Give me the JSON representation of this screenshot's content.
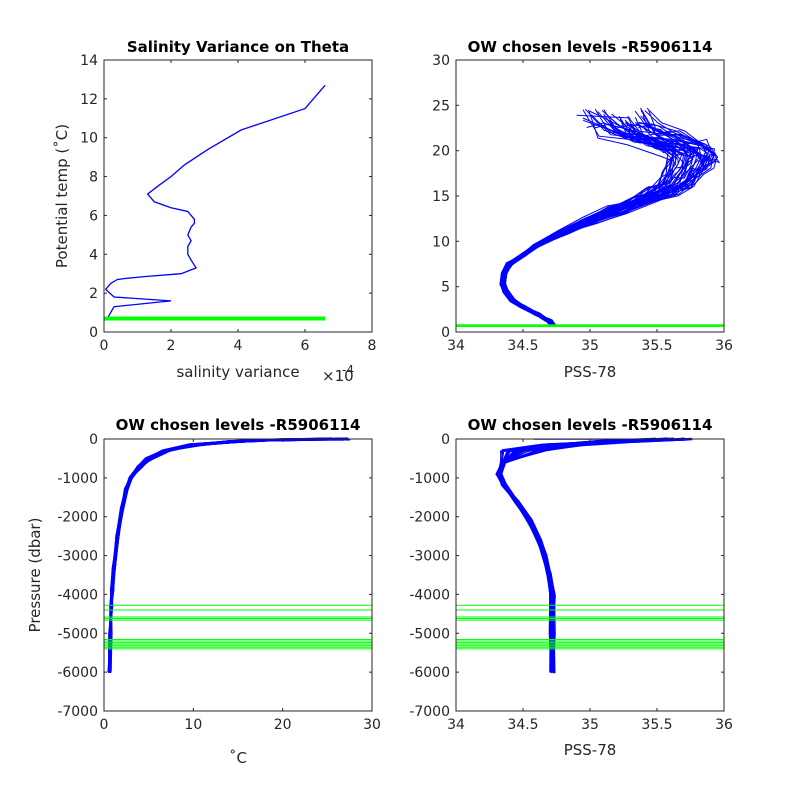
{
  "colors": {
    "profile": "#0000ff",
    "chosen_level": "#00ff00",
    "axis": "#262626",
    "background": "#ffffff"
  },
  "chart_data": [
    {
      "type": "line",
      "title": "Salinity Variance on Theta",
      "xlabel": "salinity variance",
      "x_exponent_label": "×10",
      "x_exponent_power": "-4",
      "ylabel": "Potential temp (˚C)",
      "xlim": [
        0,
        8
      ],
      "ylim": [
        0,
        14
      ],
      "xticks": [
        0,
        2,
        4,
        6,
        8
      ],
      "yticks": [
        0,
        2,
        4,
        6,
        8,
        10,
        12,
        14
      ],
      "series": [
        {
          "x": [
            0.1,
            0.3,
            2.0,
            0.3,
            0.05,
            0.2,
            0.35,
            0.4,
            0.6,
            1.2,
            2.3,
            2.75,
            2.6,
            2.5,
            2.5,
            2.6,
            2.5,
            2.6,
            2.7,
            2.7,
            2.6,
            2.5,
            2.0,
            1.5,
            1.3,
            1.6,
            2.0,
            2.4,
            3.1,
            4.1,
            6.0,
            6.6
          ],
          "y": [
            0.7,
            1.3,
            1.6,
            1.8,
            2.2,
            2.5,
            2.65,
            2.7,
            2.75,
            2.85,
            3.0,
            3.3,
            3.7,
            4.0,
            4.4,
            4.7,
            5.0,
            5.4,
            5.6,
            5.8,
            6.0,
            6.2,
            6.4,
            6.7,
            7.1,
            7.5,
            8.0,
            8.6,
            9.4,
            10.4,
            11.5,
            12.7
          ]
        }
      ],
      "chosen_levels": [
        0.62,
        0.65,
        0.68,
        0.71,
        0.74,
        0.77
      ],
      "chosen_levels_xlim": [
        0,
        6.6
      ]
    },
    {
      "type": "line",
      "title": "OW chosen levels -R5906114",
      "xlabel": "PSS-78",
      "ylabel": "",
      "xlim": [
        34,
        36
      ],
      "ylim": [
        0,
        30
      ],
      "xticks": [
        34,
        34.5,
        35,
        35.5,
        36
      ],
      "xticklabels": [
        "34",
        "34.5",
        "35",
        "35.5",
        "36"
      ],
      "yticks": [
        0,
        5,
        10,
        15,
        20,
        25,
        30
      ],
      "base_profile": {
        "x": [
          34.72,
          34.7,
          34.6,
          34.5,
          34.42,
          34.37,
          34.35,
          34.36,
          34.4,
          34.5,
          34.6,
          34.8,
          35.0,
          35.2,
          35.4,
          35.55,
          35.65,
          35.7,
          35.75,
          35.78,
          35.7,
          35.5,
          35.3,
          35.2
        ],
        "y": [
          0.8,
          1.2,
          2.0,
          2.8,
          3.5,
          4.5,
          5.3,
          6.5,
          7.5,
          8.5,
          9.5,
          11.0,
          12.3,
          13.5,
          14.7,
          15.5,
          16.5,
          17.5,
          18.5,
          19.5,
          20.3,
          21.3,
          22.5,
          23.5
        ]
      },
      "profile_count": 45,
      "outlier_profile": {
        "x": [
          34.9,
          35.3
        ],
        "y": [
          23.9,
          23.6
        ]
      },
      "chosen_levels": [
        0.6,
        0.7,
        0.8
      ]
    },
    {
      "type": "line",
      "title": "OW chosen levels -R5906114",
      "xlabel": "˚C",
      "ylabel": "Pressure (dbar)",
      "xlim": [
        0,
        30
      ],
      "ylim": [
        -7000,
        0
      ],
      "xticks": [
        0,
        10,
        20,
        30
      ],
      "yticks": [
        0,
        -1000,
        -2000,
        -3000,
        -4000,
        -5000,
        -6000,
        -7000
      ],
      "base_profile": {
        "x": [
          26.0,
          20.0,
          15.0,
          10.0,
          7.0,
          5.0,
          4.0,
          3.0,
          2.5,
          2.0,
          1.5,
          1.1,
          0.9,
          0.8,
          0.7,
          0.6
        ],
        "y": [
          0,
          -20,
          -60,
          -150,
          -300,
          -500,
          -700,
          -1000,
          -1300,
          -1800,
          -2500,
          -3300,
          -3900,
          -4300,
          -5000,
          -6000
        ]
      },
      "profile_count": 45,
      "chosen_levels": [
        -4280,
        -4400,
        -4580,
        -4620,
        -4660,
        -5160,
        -5200,
        -5240,
        -5280,
        -5320,
        -5360,
        -5400
      ]
    },
    {
      "type": "line",
      "title": "OW chosen levels -R5906114",
      "xlabel": "PSS-78",
      "ylabel": "",
      "xlim": [
        34,
        36
      ],
      "ylim": [
        -7000,
        0
      ],
      "xticks": [
        34,
        34.5,
        35,
        35.5,
        36
      ],
      "xticklabels": [
        "34",
        "34.5",
        "35",
        "35.5",
        "36"
      ],
      "yticks": [
        0,
        -1000,
        -2000,
        -3000,
        -4000,
        -5000,
        -6000,
        -7000
      ],
      "base_profile": {
        "x": [
          35.6,
          35.2,
          34.8,
          34.5,
          34.35,
          34.32,
          34.36,
          34.45,
          34.55,
          34.62,
          34.66,
          34.7,
          34.72,
          34.72,
          34.72
        ],
        "y": [
          0,
          -60,
          -150,
          -300,
          -600,
          -900,
          -1200,
          -1600,
          -2100,
          -2600,
          -3000,
          -3500,
          -4000,
          -5000,
          -6000
        ]
      },
      "profile_count": 45,
      "surface_profile": {
        "x": [
          34.58,
          35.7
        ],
        "y": [
          -5,
          -5
        ]
      },
      "chosen_levels": [
        -4280,
        -4400,
        -4580,
        -4620,
        -4660,
        -5160,
        -5200,
        -5240,
        -5280,
        -5320,
        -5360,
        -5400
      ]
    }
  ]
}
